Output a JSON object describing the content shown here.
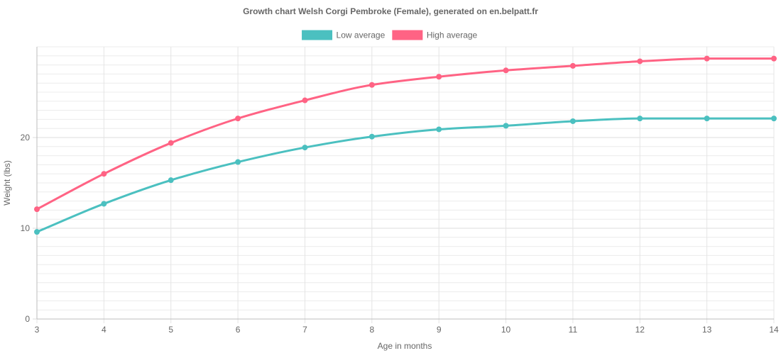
{
  "chart_data": {
    "type": "line",
    "title": "Growth chart Welsh Corgi Pembroke (Female), generated on en.belpatt.fr",
    "xlabel": "Age in months",
    "ylabel": "Weight (lbs)",
    "x": [
      3,
      4,
      5,
      6,
      7,
      8,
      9,
      10,
      11,
      12,
      13,
      14
    ],
    "ylim": [
      0,
      30
    ],
    "y_ticks": [
      0,
      10,
      20
    ],
    "minor_grid_step": 1,
    "grid": true,
    "legend_position": "top-center",
    "series": [
      {
        "name": "Low average",
        "color": "#4bc0c0",
        "values": [
          9.6,
          12.7,
          15.3,
          17.3,
          18.9,
          20.1,
          20.9,
          21.3,
          21.8,
          22.1,
          22.1,
          22.1
        ]
      },
      {
        "name": "High average",
        "color": "#ff6384",
        "values": [
          12.1,
          16.0,
          19.4,
          22.1,
          24.1,
          25.8,
          26.7,
          27.4,
          27.9,
          28.4,
          28.7,
          28.7
        ]
      }
    ]
  }
}
